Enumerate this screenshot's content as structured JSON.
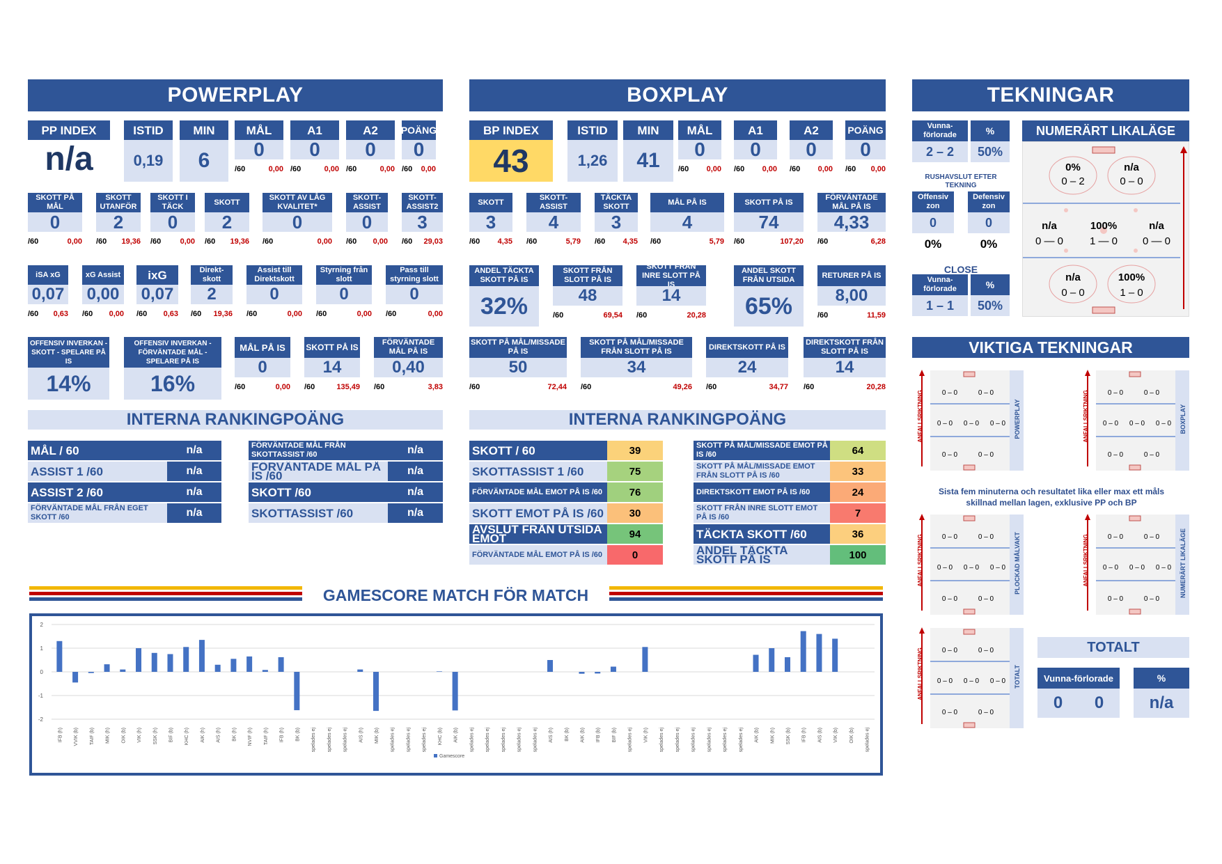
{
  "powerplay": {
    "title": "POWERPLAY",
    "row1": [
      {
        "label": "PP INDEX",
        "value": "n/a"
      },
      {
        "label": "ISTID",
        "value": "0,19"
      },
      {
        "label": "MIN",
        "value": "6"
      },
      {
        "label": "MÅL",
        "value": "0",
        "p60": "/60",
        "r": "0,00"
      },
      {
        "label": "A1",
        "value": "0",
        "p60": "/60",
        "r": "0,00"
      },
      {
        "label": "A2",
        "value": "0",
        "p60": "/60",
        "r": "0,00"
      },
      {
        "label": "POÄNG",
        "value": "0",
        "p60": "/60",
        "r": "0,00"
      }
    ],
    "row2": [
      {
        "label": "SKOTT PÅ MÅL",
        "value": "0",
        "r": "0,00"
      },
      {
        "label": "SKOTT UTANFÖR",
        "value": "2",
        "r": "19,36"
      },
      {
        "label": "SKOTT I TÄCK",
        "value": "0",
        "r": "0,00"
      },
      {
        "label": "SKOTT",
        "value": "2",
        "r": "19,36"
      },
      {
        "label": "SKOTT AV LÅG KVALITET*",
        "value": "0",
        "r": "0,00"
      },
      {
        "label": "SKOTT-ASSIST",
        "value": "0",
        "r": "0,00"
      },
      {
        "label": "SKOTT-ASSIST2",
        "value": "3",
        "r": "29,03"
      }
    ],
    "row3": [
      {
        "label": "iSA xG",
        "value": "0,07",
        "r": "0,63"
      },
      {
        "label": "xG Assist",
        "value": "0,00",
        "r": "0,00"
      },
      {
        "label": "ixG",
        "value": "0,07",
        "r": "0,63"
      },
      {
        "label": "Direkt-skott",
        "value": "2",
        "r": "19,36"
      },
      {
        "label": "Assist till Direktskott",
        "value": "0",
        "r": "0,00"
      },
      {
        "label": "Styrning från slott",
        "value": "0",
        "r": "0,00"
      },
      {
        "label": "Pass till styrning slott",
        "value": "0",
        "r": "0,00"
      }
    ],
    "row4": [
      {
        "label": "OFFENSIV INVERKAN - SKOTT - SPELARE PÅ IS",
        "value": "14%"
      },
      {
        "label": "OFFENSIV INVERKAN - FÖRVÄNTADE MÅL - SPELARE PÅ IS",
        "value": "16%"
      },
      {
        "label": "MÅL PÅ IS",
        "value": "0",
        "r": "0,00"
      },
      {
        "label": "SKOTT PÅ IS",
        "value": "14",
        "r": "135,49"
      },
      {
        "label": "FÖRVÄNTADE MÅL PÅ IS",
        "value": "0,40",
        "r": "3,83"
      }
    ],
    "ranking_title": "INTERNA RANKINGPOÄNG",
    "ranking": [
      {
        "label": "MÅL / 60",
        "value": "n/a"
      },
      {
        "label": "ASSIST 1 /60",
        "value": "n/a"
      },
      {
        "label": "ASSIST 2 /60",
        "value": "n/a"
      },
      {
        "label": "FÖRVÄNTADE MÅL FRÅN EGET SKOTT /60",
        "value": "n/a"
      },
      {
        "label": "FÖRVÄNTADE MÅL FRÅN SKOTTASSIST /60",
        "value": "n/a"
      },
      {
        "label": "FÖRVÄNTADE MÅL PÅ IS /60",
        "value": "n/a"
      },
      {
        "label": "SKOTT /60",
        "value": "n/a"
      },
      {
        "label": "SKOTTASSIST /60",
        "value": "n/a"
      }
    ]
  },
  "boxplay": {
    "title": "BOXPLAY",
    "row1": [
      {
        "label": "BP INDEX",
        "value": "43"
      },
      {
        "label": "ISTID",
        "value": "1,26"
      },
      {
        "label": "MIN",
        "value": "41"
      },
      {
        "label": "MÅL",
        "value": "0",
        "r": "0,00"
      },
      {
        "label": "A1",
        "value": "0",
        "r": "0,00"
      },
      {
        "label": "A2",
        "value": "0",
        "r": "0,00"
      },
      {
        "label": "POÄNG",
        "value": "0",
        "r": "0,00"
      }
    ],
    "row2": [
      {
        "label": "SKOTT",
        "value": "3",
        "r": "4,35"
      },
      {
        "label": "SKOTT-ASSIST",
        "value": "4",
        "r": "5,79"
      },
      {
        "label": "TÄCKTA SKOTT",
        "value": "3",
        "r": "4,35"
      },
      {
        "label": "MÅL PÅ IS",
        "value": "4",
        "r": "5,79"
      },
      {
        "label": "SKOTT PÅ IS",
        "value": "74",
        "r": "107,20"
      },
      {
        "label": "FÖRVÄNTADE MÅL PÅ IS",
        "value": "4,33",
        "r": "6,28"
      }
    ],
    "row3": [
      {
        "label": "ANDEL TÄCKTA SKOTT PÅ IS",
        "value": "32%"
      },
      {
        "label": "SKOTT FRÅN SLOTT PÅ IS",
        "value": "48",
        "r": "69,54"
      },
      {
        "label": "SKOTT FRÅN INRE SLOTT PÅ IS",
        "value": "14",
        "r": "20,28"
      },
      {
        "label": "ANDEL SKOTT FRÅN UTSIDA",
        "value": "65%"
      },
      {
        "label": "RETURER PÅ IS",
        "value": "8,00",
        "r": "11,59"
      }
    ],
    "row4": [
      {
        "label": "SKOTT PÅ MÅL/MISSADE PÅ IS",
        "value": "50",
        "r": "72,44"
      },
      {
        "label": "SKOTT PÅ MÅL/MISSADE FRÅN SLOTT PÅ IS",
        "value": "34",
        "r": "49,26"
      },
      {
        "label": "DIREKTSKOTT PÅ IS",
        "value": "24",
        "r": "34,77"
      },
      {
        "label": "DIREKTSKOTT FRÅN SLOTT PÅ IS",
        "value": "14",
        "r": "20,28"
      }
    ],
    "ranking_title": "INTERNA RANKINGPOÄNG",
    "ranking": [
      {
        "label": "SKOTT / 60",
        "value": "39",
        "color": "#fbd27a"
      },
      {
        "label": "SKOTTASSIST 1 /60",
        "value": "75",
        "color": "#a6d27e"
      },
      {
        "label": "FÖRVÄNTADE MÅL EMOT PÅ IS /60",
        "value": "76",
        "color": "#a0d07e"
      },
      {
        "label": "SKOTT EMOT PÅ IS /60",
        "value": "30",
        "color": "#fbc07a"
      },
      {
        "label": "AVSLUT FRÅN UTSIDA EMOT",
        "value": "94",
        "color": "#76c47a"
      },
      {
        "label": "FÖRVÄNTADE MÅL EMOT PÅ IS /60",
        "value": "0",
        "color": "#f8696b"
      },
      {
        "label": "SKOTT PÅ MÅL/MISSADE EMOT PÅ IS /60",
        "value": "64",
        "color": "#cfde82"
      },
      {
        "label": "SKOTT PÅ MÅL/MISSADE EMOT FRÅN SLOTT PÅ IS /60",
        "value": "33",
        "color": "#fcc47c"
      },
      {
        "label": "DIREKTSKOTT EMOT PÅ IS /60",
        "value": "24",
        "color": "#fbaa77"
      },
      {
        "label": "SKOTT FRÅN INRE SLOTT EMOT PÅ IS /60",
        "value": "7",
        "color": "#f87a6e"
      },
      {
        "label": "TÄCKTA SKOTT /60",
        "value": "36",
        "color": "#fccf7e"
      },
      {
        "label": "ANDEL TÄCKTA SKOTT PÅ IS",
        "value": "100",
        "color": "#63be7b"
      }
    ]
  },
  "tekningar": {
    "title": "TEKNINGAR",
    "vf_label": "Vunna-förlorade",
    "pct_label": "%",
    "total_vf": "2 – 2",
    "total_pct": "50%",
    "rush_label": "RUSHAVSLUT EFTER TEKNING",
    "off_label": "Offensiv zon",
    "def_label": "Defensiv zon",
    "off_val": "0",
    "def_val": "0",
    "off_pct": "0%",
    "def_pct": "0%",
    "close_label": "CLOSE",
    "close_vf": "1 – 1",
    "close_pct": "50%",
    "numerart_title": "NUMERÄRT LIKALÄGE",
    "rink": [
      {
        "pct": "0%",
        "score": "0 – 2"
      },
      {
        "pct": "n/a",
        "score": "0 – 0"
      },
      {
        "pct": "n/a",
        "score": "0 — 0"
      },
      {
        "pct": "100%",
        "score": "1 — 0"
      },
      {
        "pct": "n/a",
        "score": "0 — 0"
      },
      {
        "pct": "n/a",
        "score": "0 – 0"
      },
      {
        "pct": "100%",
        "score": "1 – 0"
      }
    ],
    "viktiga_title": "VIKTIGA TEKNINGAR",
    "direction_label": "ANFALLSRIKTNING",
    "pp_label": "POWERPLAY",
    "bp_label": "BOXPLAY",
    "plockad_label": "PLOCKAD MÅLVAKT",
    "numlik_label": "NUMERÄRT LIKALÄGE",
    "totalt_side": "TOTALT",
    "score_top": "0 – 0",
    "score_mid": "0 – 0",
    "note": "Sista fem minuterna och resultatet lika eller max ett måls skillnad mellan lagen, exklusive PP och BP",
    "totalt_title": "TOTALT",
    "totalt_vf_label": "Vunna-förlorade",
    "totalt_pct_label": "%",
    "totalt_v": "0",
    "totalt_f": "0",
    "totalt_pct": "n/a"
  },
  "gamescore": {
    "title": "GAMESCORE MATCH FÖR MATCH",
    "legend": "Gamescore"
  },
  "per60": "/60",
  "chart_data": {
    "type": "bar",
    "ylim": [
      -2,
      2
    ],
    "yticks": [
      "2",
      "1",
      "0",
      "-1",
      "-2"
    ],
    "categories": [
      "IFB (h)",
      "VVIK (b)",
      "TAIF (b)",
      "MIK (h)",
      "OIK (b)",
      "VIK (h)",
      "SSK (h)",
      "BIF (b)",
      "KHC (h)",
      "AIK (h)",
      "AIS (h)",
      "BK (h)",
      "NVIF (h)",
      "TAIF (h)",
      "IFB (h)",
      "BK (b)",
      "spelades ej",
      "spelades ej",
      "spelades ej",
      "AIS (h)",
      "MIK (b)",
      "spelades ej",
      "spelades ej",
      "spelades ej",
      "KHC (b)",
      "AIK (b)",
      "spelades ej",
      "spelades ej",
      "spelades ej",
      "spelades ej",
      "spelades ej",
      "AIS (h)",
      "BK (b)",
      "AIK (b)",
      "IFB (b)",
      "BIF (b)",
      "spelades ej",
      "VIK (h)",
      "spelades ej",
      "spelades ej",
      "spelades ej",
      "spelades ej",
      "spelades ej",
      "spelades ej",
      "AIK (b)",
      "MIK (h)",
      "SSK (b)",
      "IFB (h)",
      "AIS (b)",
      "VIK (b)",
      "OIK (b)",
      "spelades ej"
    ],
    "series": [
      {
        "name": "Gamescore",
        "values": [
          1.3,
          -0.45,
          -0.05,
          0.32,
          0.1,
          1.0,
          0.8,
          0.75,
          1.05,
          1.35,
          0.3,
          0.55,
          0.65,
          0.08,
          0.62,
          -1.62,
          0,
          0,
          0,
          0.1,
          -1.65,
          0,
          0,
          0,
          0.02,
          -1.63,
          0,
          0,
          0,
          0,
          0,
          0.5,
          0,
          -0.08,
          -0.07,
          0.22,
          0,
          1.05,
          0,
          0,
          0,
          0,
          0,
          0,
          0.72,
          1.0,
          0.62,
          1.72,
          1.6,
          1.4,
          0,
          0
        ]
      }
    ]
  }
}
